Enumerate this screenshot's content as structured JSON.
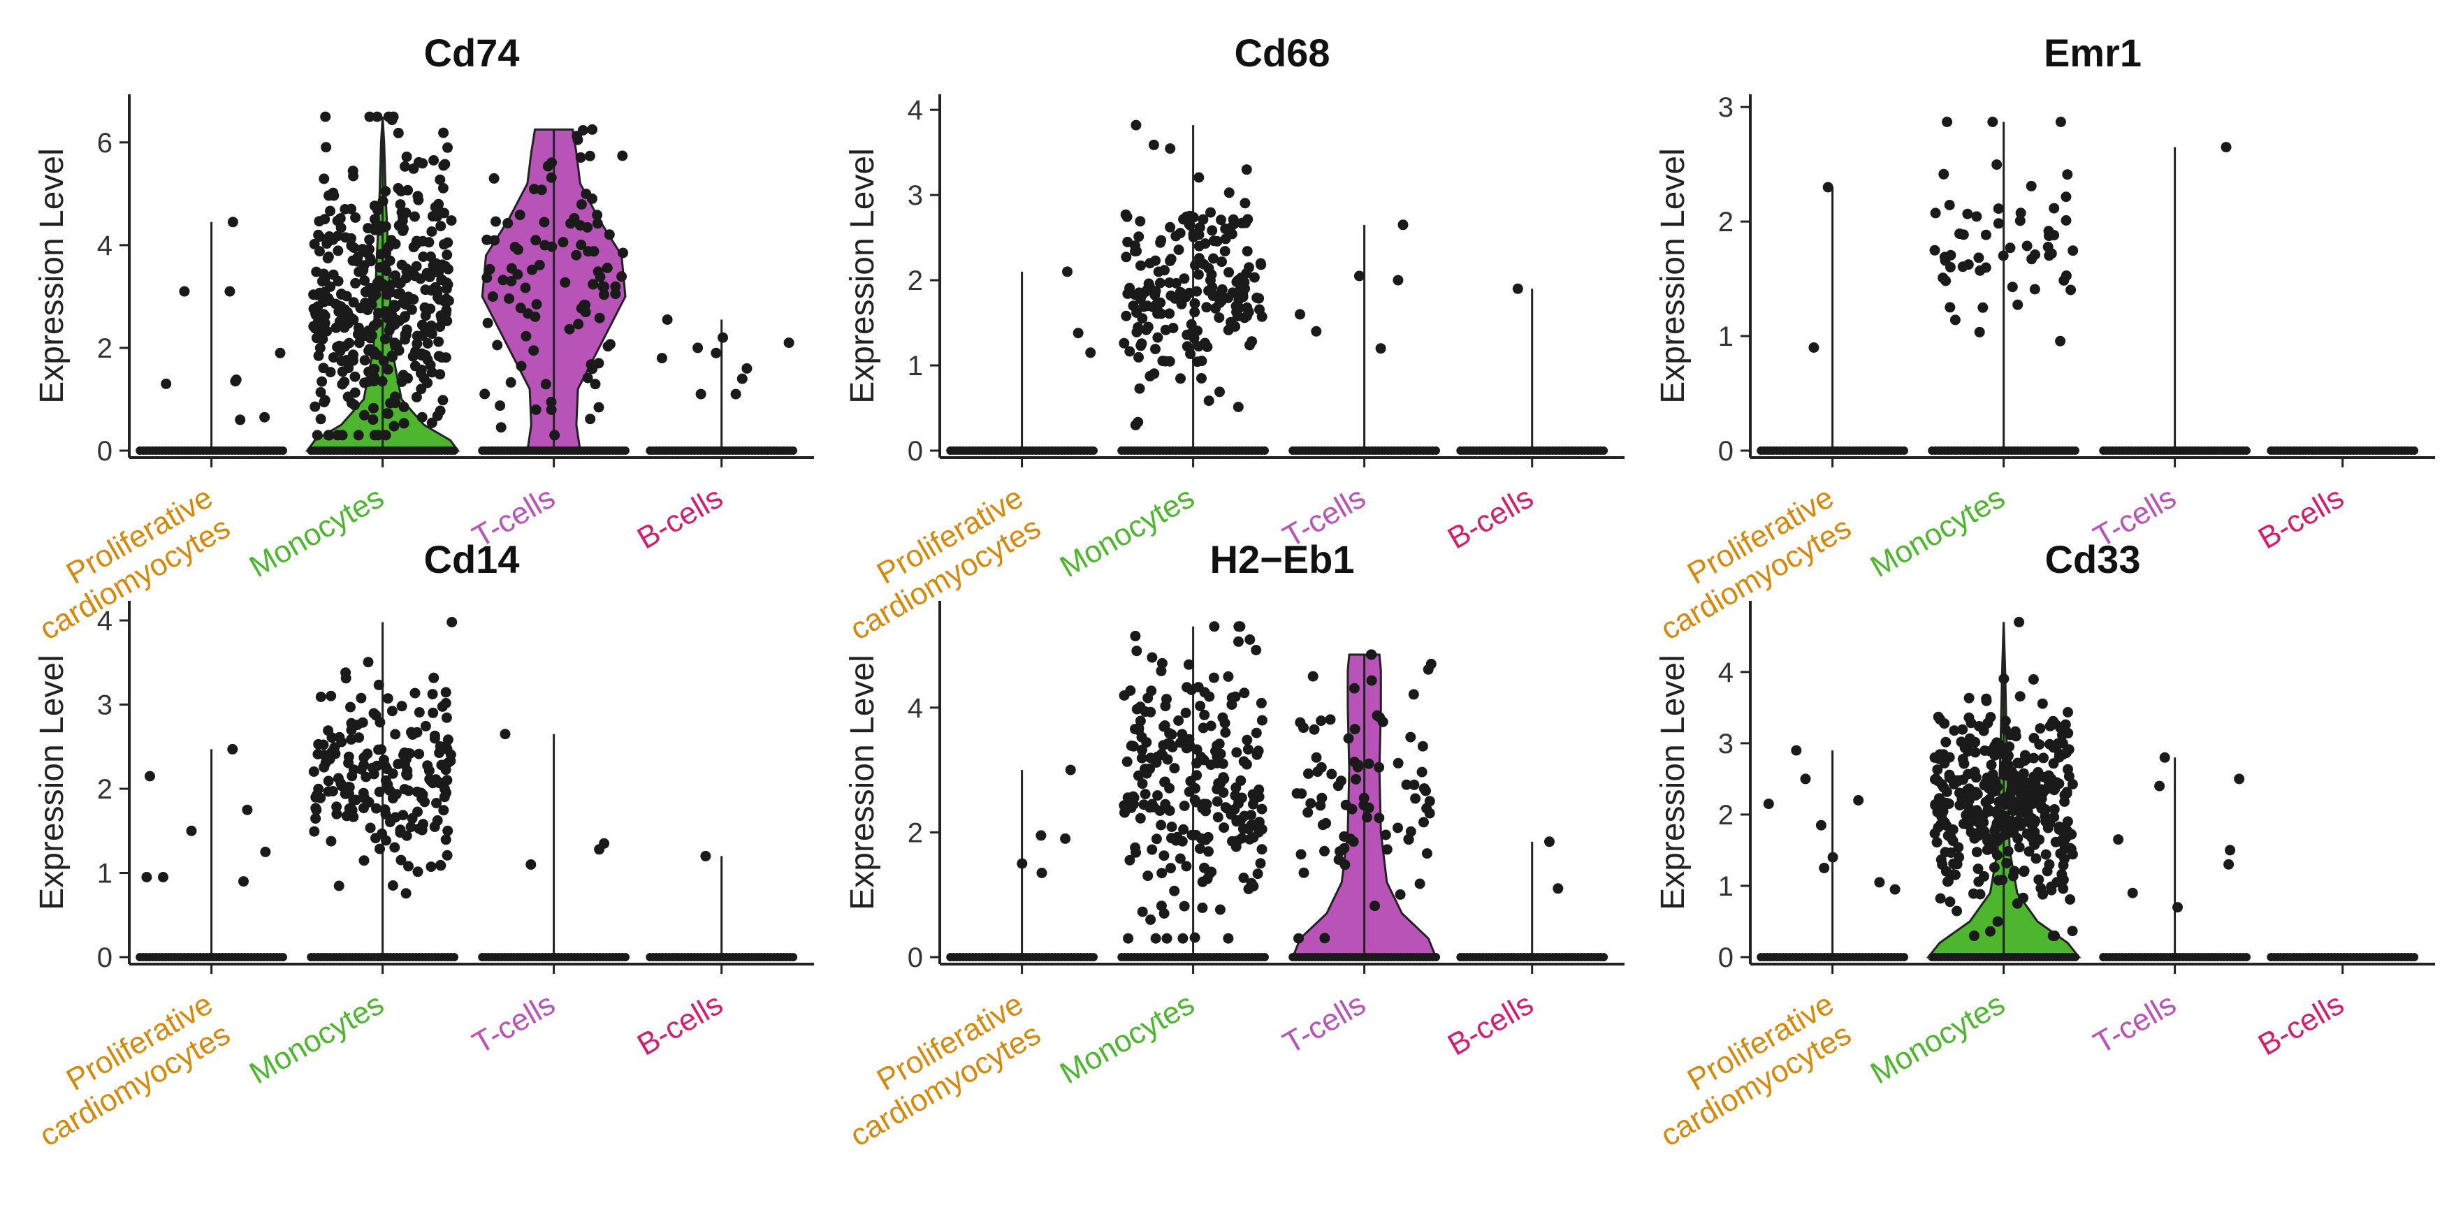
{
  "figure": {
    "type": "violin_grid",
    "ylabel": "Expression Level",
    "group_colors": {
      "Proliferative cardiomyocytes": "#d4890c",
      "Monocytes": "#4db52e",
      "T-cells": "#b854b8",
      "B-cells": "#d11f70"
    }
  },
  "chart_data": [
    {
      "type": "violin",
      "title": "Cd74",
      "xlabel": "",
      "ylabel": "Expression Level",
      "ylim": [
        0,
        6.8
      ],
      "yticks": [
        0,
        2,
        4,
        6
      ],
      "categories": [
        "Proliferative\ncardiomyocytes",
        "Monocytes",
        "T-cells",
        "B-cells"
      ],
      "groups": [
        {
          "name": "Proliferative cardiomyocytes",
          "max": 4.45,
          "violin": false,
          "points": [
            4.45,
            3.1,
            3.1,
            1.9,
            1.38,
            1.35,
            1.3,
            0.65,
            0.6
          ]
        },
        {
          "name": "Monocytes",
          "max": 6.5,
          "violin": true,
          "density": [
            [
              0,
              1.0
            ],
            [
              0.2,
              0.9
            ],
            [
              0.5,
              0.55
            ],
            [
              1.0,
              0.25
            ],
            [
              2.0,
              0.12
            ],
            [
              3.0,
              0.1
            ],
            [
              4.0,
              0.07
            ],
            [
              5.0,
              0.04
            ],
            [
              6.0,
              0.02
            ],
            [
              6.5,
              0.0
            ]
          ],
          "n_points": 380,
          "mean": 3.0,
          "sd": 1.35
        },
        {
          "name": "T-cells",
          "max": 6.25,
          "violin": true,
          "density": [
            [
              0,
              0.35
            ],
            [
              0.5,
              0.3
            ],
            [
              1.2,
              0.32
            ],
            [
              2.0,
              0.6
            ],
            [
              3.0,
              0.95
            ],
            [
              3.8,
              0.9
            ],
            [
              4.5,
              0.6
            ],
            [
              5.2,
              0.35
            ],
            [
              5.8,
              0.3
            ],
            [
              6.25,
              0.25
            ]
          ],
          "n_points": 95,
          "mean": 3.2,
          "sd": 1.3
        },
        {
          "name": "B-cells",
          "max": 2.55,
          "violin": false,
          "points": [
            2.55,
            2.2,
            2.1,
            2.0,
            1.9,
            1.8,
            1.6,
            1.4,
            1.1,
            1.1
          ]
        }
      ]
    },
    {
      "type": "violin",
      "title": "Cd68",
      "xlabel": "",
      "ylabel": "Expression Level",
      "ylim": [
        0,
        4.1
      ],
      "yticks": [
        0,
        1,
        2,
        3,
        4
      ],
      "categories": [
        "Proliferative\ncardiomyocytes",
        "Monocytes",
        "T-cells",
        "B-cells"
      ],
      "groups": [
        {
          "name": "Proliferative cardiomyocytes",
          "max": 2.1,
          "violin": false,
          "points": [
            2.1,
            1.38,
            1.15
          ]
        },
        {
          "name": "Monocytes",
          "max": 3.82,
          "violin": false,
          "n_points": 190,
          "mean": 1.9,
          "sd": 0.55
        },
        {
          "name": "T-cells",
          "max": 2.65,
          "violin": false,
          "points": [
            2.65,
            2.05,
            2.0,
            1.6,
            1.4,
            1.2
          ]
        },
        {
          "name": "B-cells",
          "max": 1.9,
          "violin": false,
          "points": [
            1.9
          ]
        }
      ]
    },
    {
      "type": "violin",
      "title": "Emr1",
      "xlabel": "",
      "ylabel": "Expression Level",
      "ylim": [
        0,
        3.05
      ],
      "yticks": [
        0,
        1,
        2,
        3
      ],
      "categories": [
        "Proliferative\ncardiomyocytes",
        "Monocytes",
        "T-cells",
        "B-cells"
      ],
      "groups": [
        {
          "name": "Proliferative cardiomyocytes",
          "max": 2.3,
          "violin": false,
          "points": [
            2.3,
            0.9
          ]
        },
        {
          "name": "Monocytes",
          "max": 2.87,
          "violin": false,
          "n_points": 55,
          "mean": 1.75,
          "sd": 0.45
        },
        {
          "name": "T-cells",
          "max": 2.65,
          "violin": false,
          "points": [
            2.65
          ]
        },
        {
          "name": "B-cells",
          "max": 0,
          "violin": false,
          "points": []
        }
      ]
    },
    {
      "type": "violin",
      "title": "Cd14",
      "xlabel": "",
      "ylabel": "Expression Level",
      "ylim": [
        0,
        4.15
      ],
      "yticks": [
        0,
        1,
        2,
        3,
        4
      ],
      "categories": [
        "Proliferative\ncardiomyocytes",
        "Monocytes",
        "T-cells",
        "B-cells"
      ],
      "groups": [
        {
          "name": "Proliferative cardiomyocytes",
          "max": 2.47,
          "violin": false,
          "points": [
            2.47,
            2.15,
            1.75,
            1.5,
            1.25,
            0.95,
            0.95,
            0.9
          ]
        },
        {
          "name": "Monocytes",
          "max": 3.98,
          "violin": false,
          "n_points": 190,
          "mean": 2.1,
          "sd": 0.6
        },
        {
          "name": "T-cells",
          "max": 2.65,
          "violin": false,
          "points": [
            2.65,
            1.35,
            1.28,
            1.1
          ]
        },
        {
          "name": "B-cells",
          "max": 1.2,
          "violin": false,
          "points": [
            1.2
          ]
        }
      ]
    },
    {
      "type": "violin",
      "title": "H2−Eb1",
      "xlabel": "",
      "ylabel": "Expression Level",
      "ylim": [
        0,
        5.6
      ],
      "yticks": [
        0,
        2,
        4
      ],
      "categories": [
        "Proliferative\ncardiomyocytes",
        "Monocytes",
        "T-cells",
        "B-cells"
      ],
      "groups": [
        {
          "name": "Proliferative cardiomyocytes",
          "max": 3.0,
          "violin": false,
          "points": [
            3.0,
            1.95,
            1.9,
            1.5,
            1.35
          ]
        },
        {
          "name": "Monocytes",
          "max": 5.3,
          "violin": false,
          "n_points": 230,
          "mean": 2.8,
          "sd": 1.1
        },
        {
          "name": "T-cells",
          "max": 4.85,
          "violin": true,
          "density": [
            [
              0,
              0.95
            ],
            [
              0.3,
              0.85
            ],
            [
              0.7,
              0.5
            ],
            [
              1.2,
              0.3
            ],
            [
              2.0,
              0.22
            ],
            [
              3.0,
              0.2
            ],
            [
              4.0,
              0.22
            ],
            [
              4.6,
              0.22
            ],
            [
              4.85,
              0.2
            ]
          ],
          "n_points": 80,
          "mean": 2.6,
          "sd": 1.1
        },
        {
          "name": "B-cells",
          "max": 1.85,
          "violin": false,
          "points": [
            1.85,
            1.1
          ]
        }
      ]
    },
    {
      "type": "violin",
      "title": "Cd33",
      "xlabel": "",
      "ylabel": "Expression Level",
      "ylim": [
        0,
        4.9
      ],
      "yticks": [
        0,
        1,
        2,
        3,
        4
      ],
      "categories": [
        "Proliferative\ncardiomyocytes",
        "Monocytes",
        "T-cells",
        "B-cells"
      ],
      "groups": [
        {
          "name": "Proliferative cardiomyocytes",
          "max": 2.9,
          "violin": false,
          "points": [
            2.9,
            2.5,
            2.2,
            2.15,
            1.85,
            1.4,
            1.25,
            1.05,
            0.95
          ]
        },
        {
          "name": "Monocytes",
          "max": 4.7,
          "violin": true,
          "density": [
            [
              0,
              1.0
            ],
            [
              0.2,
              0.85
            ],
            [
              0.5,
              0.45
            ],
            [
              0.9,
              0.18
            ],
            [
              1.5,
              0.08
            ],
            [
              2.2,
              0.06
            ],
            [
              3.0,
              0.04
            ],
            [
              4.0,
              0.02
            ],
            [
              4.7,
              0.0
            ]
          ],
          "n_points": 380,
          "mean": 2.2,
          "sd": 0.65
        },
        {
          "name": "T-cells",
          "max": 2.8,
          "violin": false,
          "points": [
            2.8,
            2.5,
            2.4,
            1.65,
            1.5,
            1.3,
            0.9,
            0.7
          ]
        },
        {
          "name": "B-cells",
          "max": 0,
          "violin": false,
          "points": []
        }
      ]
    }
  ]
}
